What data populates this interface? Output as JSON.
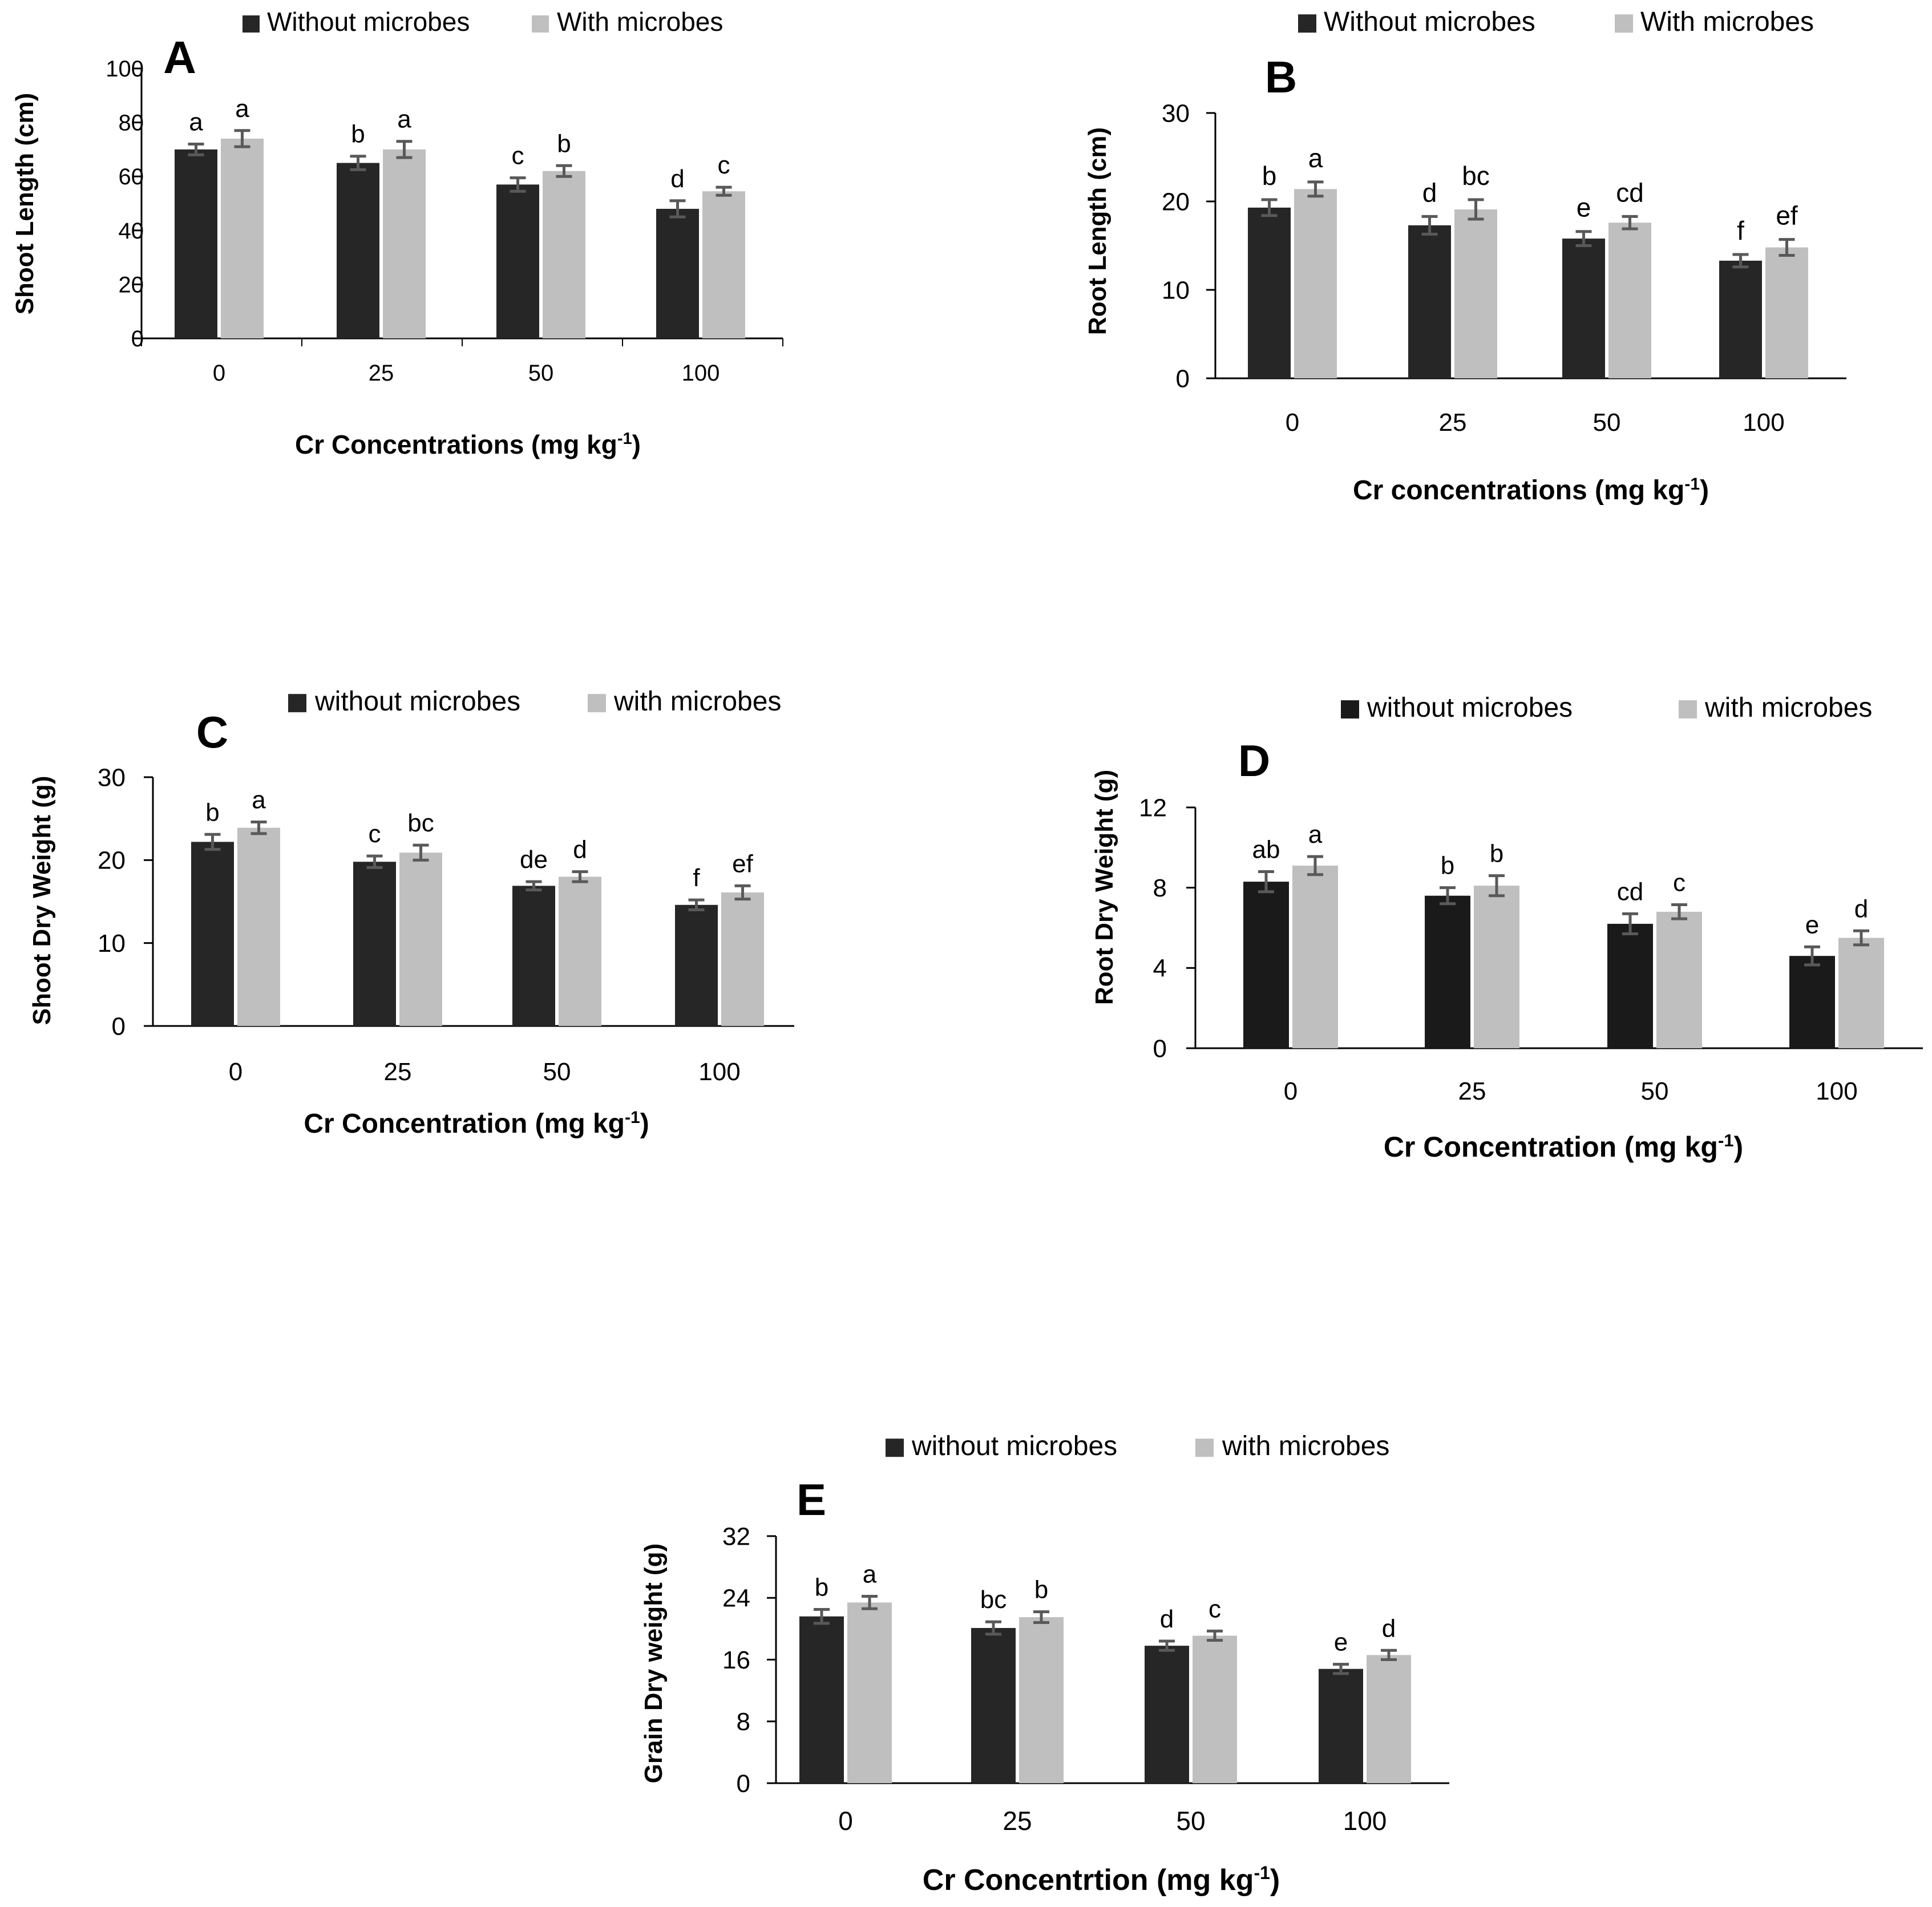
{
  "figure": {
    "background": "#ffffff"
  },
  "colors": {
    "dark": "#262626",
    "light": "#bfbfbf",
    "axis": "#000000",
    "error": "#595959",
    "text": "#000000"
  },
  "chart_data": [
    {
      "panel": "A",
      "type": "bar",
      "categories": [
        "0",
        "25",
        "50",
        "100"
      ],
      "series": [
        {
          "name": "Without microbes",
          "color": "#262626",
          "values": [
            70,
            65,
            57,
            48
          ],
          "errors": [
            2,
            2.5,
            2.5,
            3
          ]
        },
        {
          "name": "With microbes",
          "color": "#bfbfbf",
          "values": [
            74,
            70,
            62,
            54.5
          ],
          "errors": [
            3,
            3,
            2,
            1.5
          ]
        }
      ],
      "letters": [
        [
          "a",
          "b",
          "c",
          "d"
        ],
        [
          "a",
          "a",
          "b",
          "c"
        ]
      ],
      "xlabel": "Cr Concentrations (mg kg",
      "xlabel_sup": "-1",
      "xlabel_end": ")",
      "ylabel": "Shoot Length (cm)",
      "ylim": [
        0,
        100
      ],
      "yticks": [
        0,
        20,
        40,
        60,
        80,
        100
      ],
      "ytick_labels": [
        "0",
        "20",
        "40",
        "60",
        "80",
        "100"
      ],
      "grid": false,
      "legend_position": "top"
    },
    {
      "panel": "B",
      "type": "bar",
      "categories": [
        "0",
        "25",
        "50",
        "100"
      ],
      "series": [
        {
          "name": "Without microbes",
          "color": "#262626",
          "values": [
            19.3,
            17.3,
            15.8,
            13.3
          ],
          "errors": [
            0.9,
            1.0,
            0.8,
            0.7
          ]
        },
        {
          "name": "With microbes",
          "color": "#bfbfbf",
          "values": [
            21.4,
            19.1,
            17.6,
            14.8
          ],
          "errors": [
            0.8,
            1.1,
            0.7,
            0.9
          ]
        }
      ],
      "letters": [
        [
          "b",
          "d",
          "e",
          "f"
        ],
        [
          "a",
          "bc",
          "cd",
          "ef"
        ]
      ],
      "xlabel": "Cr concentrations (mg kg",
      "xlabel_sup": "-1",
      "xlabel_end": ")",
      "ylabel": "Root Length (cm)",
      "ylim": [
        0,
        30
      ],
      "yticks": [
        0,
        10,
        20,
        30
      ],
      "ytick_labels": [
        "0",
        "10",
        "20",
        "30"
      ],
      "grid": false,
      "legend_position": "top"
    },
    {
      "panel": "C",
      "type": "bar",
      "categories": [
        "0",
        "25",
        "50",
        "100"
      ],
      "series": [
        {
          "name": "without microbes",
          "color": "#262626",
          "values": [
            22.2,
            19.8,
            16.9,
            14.6
          ],
          "errors": [
            0.9,
            0.7,
            0.5,
            0.6
          ]
        },
        {
          "name": "with microbes",
          "color": "#bfbfbf",
          "values": [
            23.9,
            20.9,
            18.0,
            16.1
          ],
          "errors": [
            0.7,
            0.9,
            0.6,
            0.8
          ]
        }
      ],
      "letters": [
        [
          "b",
          "c",
          "de",
          "f"
        ],
        [
          "a",
          "bc",
          "d",
          "ef"
        ]
      ],
      "xlabel": "Cr Concentration (mg kg",
      "xlabel_sup": "-1",
      "xlabel_end": ")",
      "ylabel": "Shoot Dry Weight (g)",
      "ylim": [
        0,
        30
      ],
      "yticks": [
        0,
        10,
        20,
        30
      ],
      "ytick_labels": [
        "0",
        "10",
        "20",
        "30"
      ],
      "grid": false,
      "legend_position": "top"
    },
    {
      "panel": "D",
      "type": "bar",
      "categories": [
        "0",
        "25",
        "50",
        "100"
      ],
      "series": [
        {
          "name": "without microbes",
          "color": "#1a1a1a",
          "values": [
            8.3,
            7.6,
            6.2,
            4.6
          ],
          "errors": [
            0.5,
            0.4,
            0.5,
            0.45
          ]
        },
        {
          "name": "with microbes",
          "color": "#bfbfbf",
          "values": [
            9.1,
            8.1,
            6.8,
            5.5
          ],
          "errors": [
            0.45,
            0.5,
            0.35,
            0.35
          ]
        }
      ],
      "letters": [
        [
          "ab",
          "b",
          "cd",
          "e"
        ],
        [
          "a",
          "b",
          "c",
          "d"
        ]
      ],
      "xlabel": "Cr Concentration (mg kg",
      "xlabel_sup": "-1",
      "xlabel_end": ")",
      "ylabel": "Root Dry Weight (g)",
      "ylim": [
        0,
        12
      ],
      "yticks": [
        0,
        4,
        8,
        12
      ],
      "ytick_labels": [
        "0",
        "4",
        "8",
        "12"
      ],
      "grid": false,
      "legend_position": "top"
    },
    {
      "panel": "E",
      "type": "bar",
      "categories": [
        "0",
        "25",
        "50",
        "100"
      ],
      "series": [
        {
          "name": "without microbes",
          "color": "#262626",
          "values": [
            21.6,
            20.1,
            17.8,
            14.8
          ],
          "errors": [
            0.9,
            0.8,
            0.6,
            0.6
          ]
        },
        {
          "name": "with microbes",
          "color": "#bfbfbf",
          "values": [
            23.4,
            21.5,
            19.1,
            16.6
          ],
          "errors": [
            0.8,
            0.7,
            0.6,
            0.6
          ]
        }
      ],
      "letters": [
        [
          "b",
          "bc",
          "d",
          "e"
        ],
        [
          "a",
          "b",
          "c",
          "d"
        ]
      ],
      "xlabel": "Cr Concentrtion (mg kg",
      "xlabel_sup": "-1",
      "xlabel_end": ")",
      "ylabel": "Grain Dry weight (g)",
      "ylim": [
        0,
        32
      ],
      "yticks": [
        0,
        8,
        16,
        24,
        32
      ],
      "ytick_labels": [
        "0",
        "8",
        "16",
        "24",
        "32"
      ],
      "grid": false,
      "legend_position": "top"
    }
  ]
}
